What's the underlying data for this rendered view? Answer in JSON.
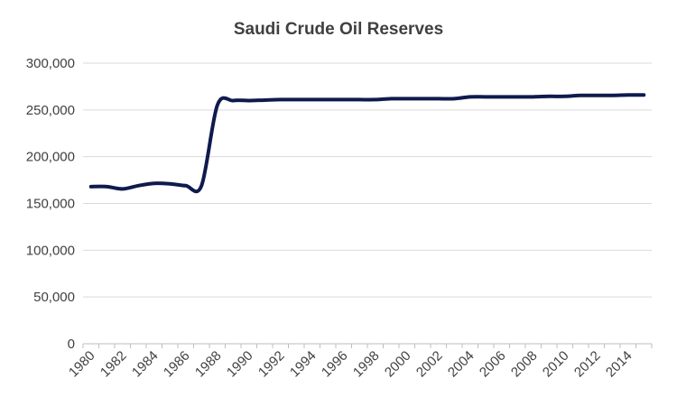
{
  "chart_data": {
    "type": "line",
    "title": "Saudi Crude Oil Reserves",
    "xlabel": "",
    "ylabel": "",
    "ylim": [
      0,
      300000
    ],
    "yticks": [
      "0",
      "50,000",
      "100,000",
      "150,000",
      "200,000",
      "250,000",
      "300,000"
    ],
    "grid": true,
    "legend": "none",
    "line_color": "#0f1a4d",
    "x": [
      1980,
      1981,
      1982,
      1983,
      1984,
      1985,
      1986,
      1987,
      1988,
      1989,
      1990,
      1991,
      1992,
      1993,
      1994,
      1995,
      1996,
      1997,
      1998,
      1999,
      2000,
      2001,
      2002,
      2003,
      2004,
      2005,
      2006,
      2007,
      2008,
      2009,
      2010,
      2011,
      2012,
      2013,
      2014,
      2015
    ],
    "xtick_labels": [
      "1980",
      "1982",
      "1984",
      "1986",
      "1988",
      "1990",
      "1992",
      "1994",
      "1996",
      "1998",
      "2000",
      "2002",
      "2004",
      "2006",
      "2008",
      "2010",
      "2012",
      "2014"
    ],
    "series": [
      {
        "values": [
          168000,
          168000,
          165500,
          169000,
          171500,
          171000,
          169000,
          169000,
          255000,
          260000,
          260000,
          260500,
          261000,
          261000,
          261000,
          261000,
          261000,
          261000,
          261000,
          262000,
          262000,
          262000,
          262000,
          262000,
          264000,
          264000,
          264000,
          264000,
          264000,
          264500,
          264500,
          265500,
          265500,
          265500,
          266000,
          266000
        ]
      }
    ]
  }
}
